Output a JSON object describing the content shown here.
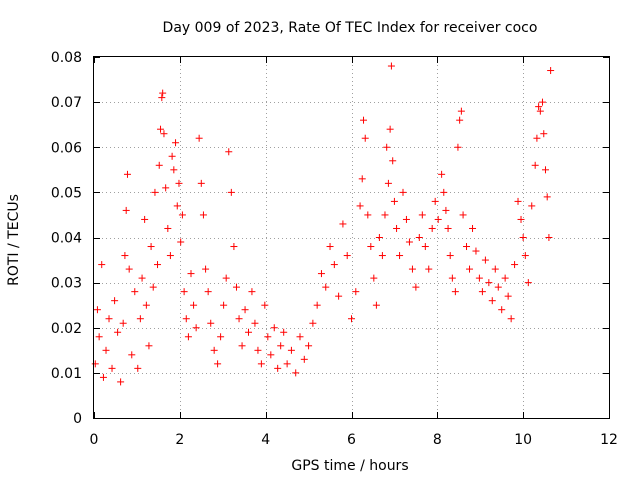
{
  "chart_data": {
    "type": "scatter",
    "title": "Day 009 of 2023, Rate Of TEC Index for receiver coco",
    "xlabel": "GPS time / hours",
    "ylabel": "ROTI / TECUs",
    "xlim": [
      0,
      12
    ],
    "ylim": [
      0,
      0.08
    ],
    "xticks": [
      "0",
      "2",
      "4",
      "6",
      "8",
      "10",
      "12"
    ],
    "yticks": [
      "0",
      "0.01",
      "0.02",
      "0.03",
      "0.04",
      "0.05",
      "0.06",
      "0.07",
      "0.08"
    ],
    "grid": true,
    "marker": "plus",
    "color": "#ff0000",
    "series": [
      {
        "points": [
          [
            0.03,
            0.012
          ],
          [
            0.08,
            0.024
          ],
          [
            0.12,
            0.018
          ],
          [
            0.18,
            0.034
          ],
          [
            0.22,
            0.009
          ],
          [
            0.28,
            0.015
          ],
          [
            0.35,
            0.022
          ],
          [
            0.42,
            0.011
          ],
          [
            0.48,
            0.026
          ],
          [
            0.55,
            0.019
          ],
          [
            0.62,
            0.008
          ],
          [
            0.68,
            0.021
          ],
          [
            0.72,
            0.036
          ],
          [
            0.75,
            0.046
          ],
          [
            0.78,
            0.054
          ],
          [
            0.82,
            0.033
          ],
          [
            0.88,
            0.014
          ],
          [
            0.95,
            0.028
          ],
          [
            1.02,
            0.011
          ],
          [
            1.08,
            0.022
          ],
          [
            1.12,
            0.031
          ],
          [
            1.18,
            0.044
          ],
          [
            1.22,
            0.025
          ],
          [
            1.28,
            0.016
          ],
          [
            1.33,
            0.038
          ],
          [
            1.38,
            0.029
          ],
          [
            1.42,
            0.05
          ],
          [
            1.48,
            0.034
          ],
          [
            1.52,
            0.056
          ],
          [
            1.55,
            0.064
          ],
          [
            1.58,
            0.071
          ],
          [
            1.6,
            0.072
          ],
          [
            1.63,
            0.063
          ],
          [
            1.67,
            0.051
          ],
          [
            1.72,
            0.042
          ],
          [
            1.78,
            0.036
          ],
          [
            1.82,
            0.058
          ],
          [
            1.86,
            0.055
          ],
          [
            1.9,
            0.061
          ],
          [
            1.94,
            0.047
          ],
          [
            1.98,
            0.052
          ],
          [
            2.02,
            0.039
          ],
          [
            2.06,
            0.045
          ],
          [
            2.1,
            0.028
          ],
          [
            2.15,
            0.022
          ],
          [
            2.2,
            0.018
          ],
          [
            2.26,
            0.032
          ],
          [
            2.32,
            0.025
          ],
          [
            2.38,
            0.02
          ],
          [
            2.45,
            0.062
          ],
          [
            2.5,
            0.052
          ],
          [
            2.55,
            0.045
          ],
          [
            2.6,
            0.033
          ],
          [
            2.66,
            0.028
          ],
          [
            2.72,
            0.021
          ],
          [
            2.8,
            0.015
          ],
          [
            2.88,
            0.012
          ],
          [
            2.95,
            0.018
          ],
          [
            3.02,
            0.025
          ],
          [
            3.08,
            0.031
          ],
          [
            3.14,
            0.059
          ],
          [
            3.2,
            0.05
          ],
          [
            3.26,
            0.038
          ],
          [
            3.32,
            0.029
          ],
          [
            3.38,
            0.022
          ],
          [
            3.45,
            0.016
          ],
          [
            3.52,
            0.024
          ],
          [
            3.6,
            0.019
          ],
          [
            3.68,
            0.028
          ],
          [
            3.75,
            0.021
          ],
          [
            3.82,
            0.015
          ],
          [
            3.9,
            0.012
          ],
          [
            3.98,
            0.025
          ],
          [
            4.05,
            0.018
          ],
          [
            4.12,
            0.014
          ],
          [
            4.2,
            0.02
          ],
          [
            4.28,
            0.011
          ],
          [
            4.35,
            0.016
          ],
          [
            4.42,
            0.019
          ],
          [
            4.5,
            0.012
          ],
          [
            4.6,
            0.015
          ],
          [
            4.7,
            0.01
          ],
          [
            4.8,
            0.018
          ],
          [
            4.9,
            0.013
          ],
          [
            5.0,
            0.016
          ],
          [
            5.1,
            0.021
          ],
          [
            5.2,
            0.025
          ],
          [
            5.3,
            0.032
          ],
          [
            5.4,
            0.029
          ],
          [
            5.5,
            0.038
          ],
          [
            5.6,
            0.034
          ],
          [
            5.7,
            0.027
          ],
          [
            5.8,
            0.043
          ],
          [
            5.9,
            0.036
          ],
          [
            6.0,
            0.022
          ],
          [
            6.1,
            0.028
          ],
          [
            6.2,
            0.047
          ],
          [
            6.25,
            0.053
          ],
          [
            6.28,
            0.066
          ],
          [
            6.32,
            0.062
          ],
          [
            6.38,
            0.045
          ],
          [
            6.45,
            0.038
          ],
          [
            6.52,
            0.031
          ],
          [
            6.58,
            0.025
          ],
          [
            6.65,
            0.04
          ],
          [
            6.72,
            0.036
          ],
          [
            6.78,
            0.045
          ],
          [
            6.82,
            0.06
          ],
          [
            6.86,
            0.052
          ],
          [
            6.9,
            0.064
          ],
          [
            6.93,
            0.078
          ],
          [
            6.96,
            0.057
          ],
          [
            7.0,
            0.048
          ],
          [
            7.05,
            0.042
          ],
          [
            7.12,
            0.036
          ],
          [
            7.2,
            0.05
          ],
          [
            7.28,
            0.044
          ],
          [
            7.35,
            0.039
          ],
          [
            7.42,
            0.033
          ],
          [
            7.5,
            0.029
          ],
          [
            7.58,
            0.04
          ],
          [
            7.65,
            0.045
          ],
          [
            7.72,
            0.038
          ],
          [
            7.8,
            0.033
          ],
          [
            7.88,
            0.042
          ],
          [
            7.95,
            0.048
          ],
          [
            8.02,
            0.044
          ],
          [
            8.1,
            0.054
          ],
          [
            8.15,
            0.05
          ],
          [
            8.2,
            0.046
          ],
          [
            8.25,
            0.042
          ],
          [
            8.3,
            0.036
          ],
          [
            8.35,
            0.031
          ],
          [
            8.42,
            0.028
          ],
          [
            8.48,
            0.06
          ],
          [
            8.52,
            0.066
          ],
          [
            8.56,
            0.068
          ],
          [
            8.6,
            0.045
          ],
          [
            8.68,
            0.038
          ],
          [
            8.75,
            0.033
          ],
          [
            8.82,
            0.042
          ],
          [
            8.9,
            0.037
          ],
          [
            8.98,
            0.031
          ],
          [
            9.05,
            0.028
          ],
          [
            9.12,
            0.035
          ],
          [
            9.2,
            0.03
          ],
          [
            9.28,
            0.026
          ],
          [
            9.35,
            0.033
          ],
          [
            9.42,
            0.029
          ],
          [
            9.5,
            0.024
          ],
          [
            9.58,
            0.031
          ],
          [
            9.65,
            0.027
          ],
          [
            9.72,
            0.022
          ],
          [
            9.8,
            0.034
          ],
          [
            9.88,
            0.048
          ],
          [
            9.95,
            0.044
          ],
          [
            10.0,
            0.04
          ],
          [
            10.05,
            0.036
          ],
          [
            10.12,
            0.03
          ],
          [
            10.2,
            0.047
          ],
          [
            10.28,
            0.056
          ],
          [
            10.32,
            0.062
          ],
          [
            10.36,
            0.069
          ],
          [
            10.4,
            0.068
          ],
          [
            10.45,
            0.07
          ],
          [
            10.48,
            0.063
          ],
          [
            10.52,
            0.055
          ],
          [
            10.56,
            0.049
          ],
          [
            10.6,
            0.04
          ],
          [
            10.64,
            0.077
          ]
        ]
      }
    ]
  }
}
